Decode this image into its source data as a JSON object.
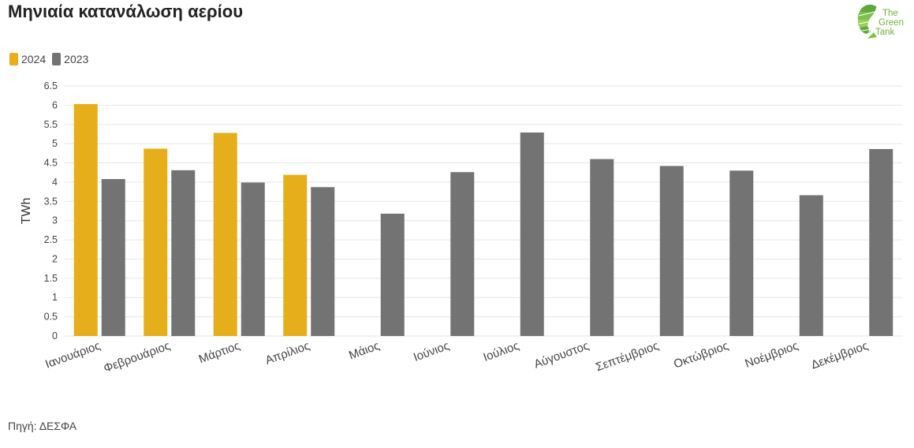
{
  "title": "Μηνιαία κατανάλωση αερίου",
  "source": "Πηγή: ΔΕΣΦΑ",
  "logo": {
    "line1": "The",
    "line2": "Green",
    "line3": "Tank",
    "color": "#6db33f"
  },
  "colors": {
    "2024": "#e6ae1a",
    "2023": "#737373",
    "grid": "#e6e6e6"
  },
  "chart_data": {
    "type": "bar",
    "title": "Μηνιαία κατανάλωση αερίου",
    "xlabel": "",
    "ylabel": "TWh",
    "ylim": [
      0,
      6.5
    ],
    "yticks": [
      "0",
      "0.5",
      "1",
      "1.5",
      "2",
      "2.5",
      "3",
      "3.5",
      "4",
      "4.5",
      "5",
      "5.5",
      "6",
      "6.5"
    ],
    "ytick_values": [
      0,
      0.5,
      1,
      1.5,
      2,
      2.5,
      3,
      3.5,
      4,
      4.5,
      5,
      5.5,
      6,
      6.5
    ],
    "grid": true,
    "legend_position": "top-left",
    "categories": [
      "Ιανουάριος",
      "Φεβρουάριος",
      "Μάρτιος",
      "Απρίλιος",
      "Μάιος",
      "Ιούνιος",
      "Ιούλιος",
      "Αύγουστος",
      "Σεπτέμβριος",
      "Οκτώβριος",
      "Νοέμβριος",
      "Δεκέμβριος"
    ],
    "series": [
      {
        "name": "2024",
        "color": "#e6ae1a",
        "values": [
          6.03,
          4.87,
          5.28,
          4.19,
          null,
          null,
          null,
          null,
          null,
          null,
          null,
          null
        ]
      },
      {
        "name": "2023",
        "color": "#737373",
        "values": [
          4.08,
          4.31,
          3.99,
          3.87,
          3.18,
          4.26,
          5.29,
          4.6,
          4.42,
          4.3,
          3.66,
          4.86
        ]
      }
    ]
  }
}
